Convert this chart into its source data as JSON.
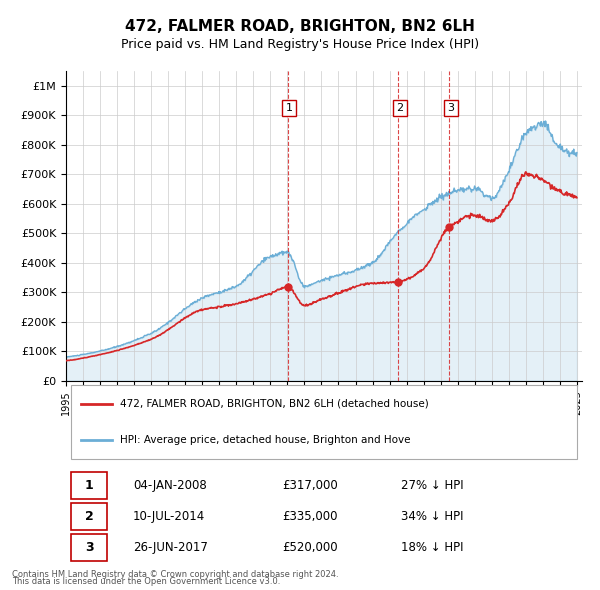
{
  "title": "472, FALMER ROAD, BRIGHTON, BN2 6LH",
  "subtitle": "Price paid vs. HM Land Registry's House Price Index (HPI)",
  "legend_label_red": "472, FALMER ROAD, BRIGHTON, BN2 6LH (detached house)",
  "legend_label_blue": "HPI: Average price, detached house, Brighton and Hove",
  "footnote1": "Contains HM Land Registry data © Crown copyright and database right 2024.",
  "footnote2": "This data is licensed under the Open Government Licence v3.0.",
  "transactions": [
    {
      "id": 1,
      "date": "04-JAN-2008",
      "price": "£317,000",
      "pct": "27% ↓ HPI",
      "year": 2008.01
    },
    {
      "id": 2,
      "date": "10-JUL-2014",
      "price": "£335,000",
      "pct": "34% ↓ HPI",
      "year": 2014.52
    },
    {
      "id": 3,
      "date": "26-JUN-2017",
      "price": "£520,000",
      "pct": "18% ↓ HPI",
      "year": 2017.49
    }
  ],
  "transaction_prices": [
    317000,
    335000,
    520000
  ],
  "hpi_color": "#6baed6",
  "price_color": "#d62728",
  "vline_color": "#d62728",
  "background_color": "#ffffff",
  "grid_color": "#cccccc",
  "ylim": [
    0,
    1050000
  ],
  "xlim_start": 1995.0,
  "xlim_end": 2025.3,
  "yticks": [
    0,
    100000,
    200000,
    300000,
    400000,
    500000,
    600000,
    700000,
    800000,
    900000,
    1000000
  ],
  "ytick_labels": [
    "£0",
    "£100K",
    "£200K",
    "£300K",
    "£400K",
    "£500K",
    "£600K",
    "£700K",
    "£800K",
    "£900K",
    "£1M"
  ]
}
